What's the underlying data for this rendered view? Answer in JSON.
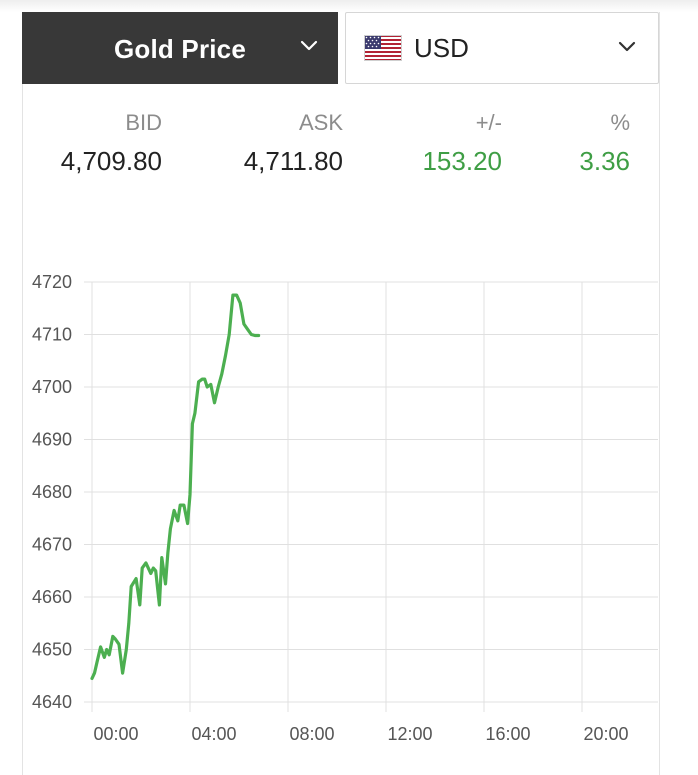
{
  "selector": {
    "metal_label": "Gold Price",
    "currency_label": "USD",
    "currency_flag": "us-flag-icon"
  },
  "quote": {
    "headers": {
      "bid": "BID",
      "ask": "ASK",
      "change": "+/-",
      "percent": "%"
    },
    "bid": "4,709.80",
    "ask": "4,711.80",
    "change": "153.20",
    "percent": "3.36"
  },
  "colors": {
    "header_bg": "#383838",
    "line": "#4caf50",
    "positive": "#3f9e45",
    "grid": "#e0e0e0"
  },
  "chart_data": {
    "type": "line",
    "title": "",
    "xlabel": "",
    "ylabel": "",
    "x_unit": "hours",
    "xlim": [
      0,
      24
    ],
    "ylim": [
      4640,
      4720
    ],
    "x_ticks": [
      {
        "value": 0,
        "label": "00:00"
      },
      {
        "value": 4,
        "label": "04:00"
      },
      {
        "value": 8,
        "label": "08:00"
      },
      {
        "value": 12,
        "label": "12:00"
      },
      {
        "value": 16,
        "label": "16:00"
      },
      {
        "value": 20,
        "label": "20:00"
      }
    ],
    "y_ticks": [
      4640,
      4650,
      4660,
      4670,
      4680,
      4690,
      4700,
      4710,
      4720
    ],
    "grid": true,
    "legend": "none",
    "series": [
      {
        "x": [
          0.0,
          0.1,
          0.2,
          0.35,
          0.5,
          0.6,
          0.7,
          0.85,
          0.95,
          1.1,
          1.25,
          1.4,
          1.5,
          1.6,
          1.8,
          1.95,
          2.05,
          2.2,
          2.4,
          2.5,
          2.6,
          2.75,
          2.85,
          3.0,
          3.1,
          3.2,
          3.35,
          3.5,
          3.6,
          3.75,
          3.9,
          4.0,
          4.1,
          4.2,
          4.35,
          4.5,
          4.6,
          4.7,
          4.85,
          5.0,
          5.15,
          5.3,
          5.45,
          5.6,
          5.75,
          5.9,
          6.05,
          6.2,
          6.35,
          6.5,
          6.65,
          6.8
        ],
        "y": [
          4644.5,
          4645.5,
          4647.5,
          4650.5,
          4648.5,
          4650.0,
          4649.0,
          4652.5,
          4652.0,
          4651.0,
          4645.5,
          4650.0,
          4655.0,
          4662.0,
          4663.5,
          4658.5,
          4665.5,
          4666.5,
          4664.5,
          4665.5,
          4665.0,
          4658.5,
          4667.5,
          4662.5,
          4668.5,
          4673.0,
          4676.5,
          4674.5,
          4677.5,
          4677.5,
          4674.0,
          4679.5,
          4693.0,
          4695.0,
          4701.0,
          4701.5,
          4701.5,
          4700.0,
          4700.5,
          4697.0,
          4700.0,
          4702.5,
          4706.0,
          4710.0,
          4717.5,
          4717.5,
          4716.0,
          4712.0,
          4711.0,
          4710.0,
          4709.8,
          4709.8
        ]
      }
    ]
  }
}
